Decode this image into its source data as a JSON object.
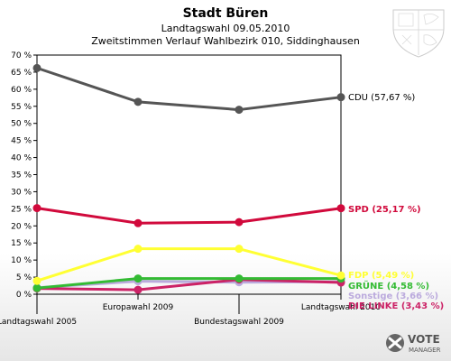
{
  "chart_data": {
    "type": "line",
    "title": "Stadt Büren",
    "subtitle1": "Landtagswahl 09.05.2010",
    "subtitle2": "Zweitstimmen Verlauf Wahlbezirk 010, Siddinghausen",
    "categories": [
      "Landtagswahl 2005",
      "Europawahl 2009",
      "Bundestagswahl 2009",
      "Landtagswahl 2010"
    ],
    "ylim": [
      0,
      70
    ],
    "yticks": [
      0,
      5,
      10,
      15,
      20,
      25,
      30,
      35,
      40,
      45,
      50,
      55,
      60,
      65,
      70
    ],
    "ytick_labels": [
      "0 %",
      "5 %",
      "10 %",
      "15 %",
      "20 %",
      "25 %",
      "30 %",
      "35 %",
      "40 %",
      "45 %",
      "50 %",
      "55 %",
      "60 %",
      "65 %",
      "70 %"
    ],
    "grid": false,
    "series": [
      {
        "name": "CDU",
        "label": "CDU (57,67 %)",
        "color": "#555555",
        "values": [
          66.2,
          56.3,
          54.0,
          57.67
        ]
      },
      {
        "name": "SPD",
        "label": "SPD (25,17 %)",
        "color": "#d10a3c",
        "values": [
          25.2,
          20.8,
          21.1,
          25.17
        ]
      },
      {
        "name": "FDP",
        "label": "FDP (5,49 %)",
        "color": "#ffff33",
        "values": [
          3.9,
          13.3,
          13.3,
          5.49
        ]
      },
      {
        "name": "GRÜNE",
        "label": "GRÜNE (4,58 %)",
        "color": "#33bb33",
        "values": [
          1.8,
          4.6,
          4.6,
          4.58
        ]
      },
      {
        "name": "Sonstige",
        "label": "Sonstige (3,66 %)",
        "color": "#bbaadd",
        "values": [
          1.9,
          3.8,
          3.5,
          3.66
        ]
      },
      {
        "name": "DIE LINKE",
        "label": "DIE LINKE (3,43 %)",
        "color": "#cc2266",
        "values": [
          1.7,
          1.3,
          4.3,
          3.43
        ]
      }
    ]
  },
  "branding": {
    "logo_text1": "VOTE",
    "logo_text2": "MANAGER"
  }
}
